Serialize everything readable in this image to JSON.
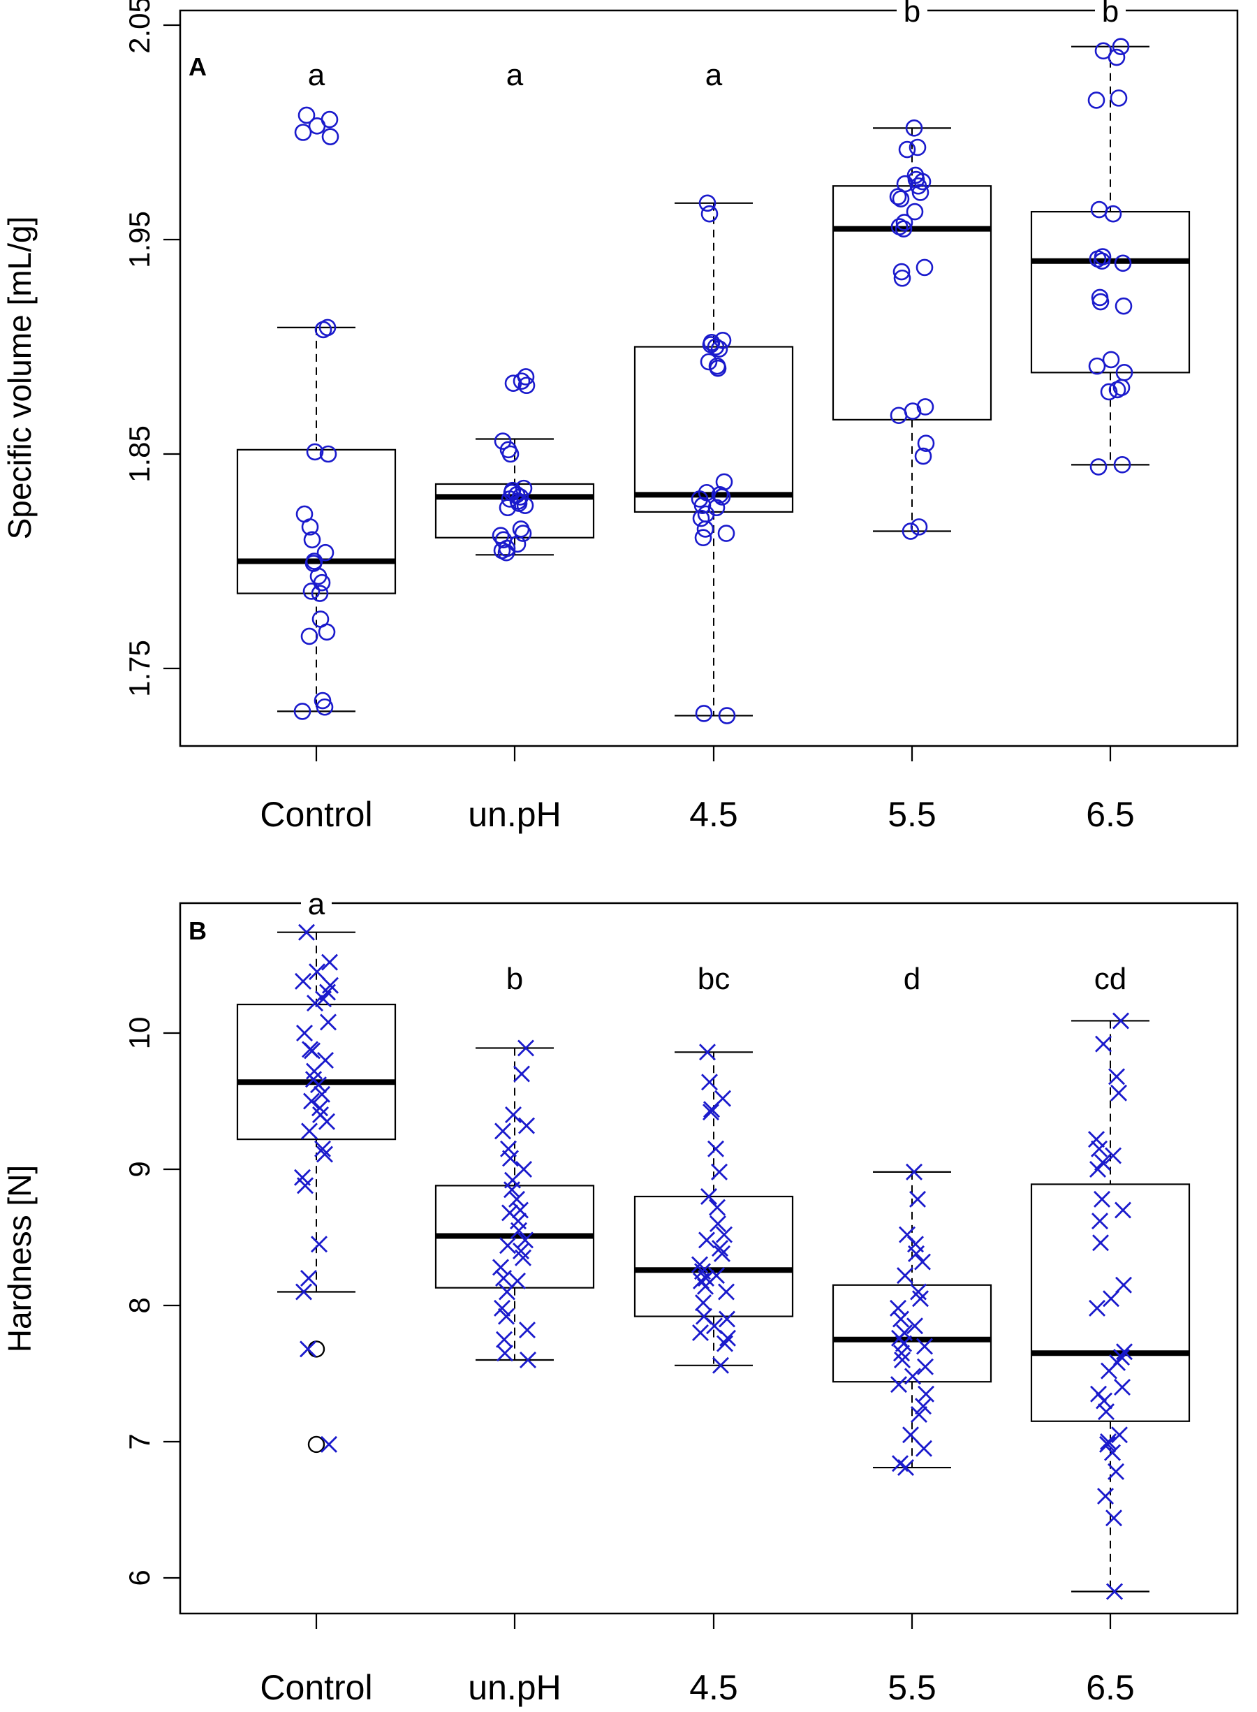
{
  "chart_data": [
    {
      "panel": "A",
      "type": "boxplot",
      "ylabel": "Specific volume [mL/g]",
      "xlabel": "",
      "ylim": [
        1.715,
        2.05
      ],
      "yticks": [
        1.75,
        1.85,
        1.95,
        2.05
      ],
      "ytick_labels": [
        "1.75",
        "1.85",
        "1.95",
        "2.05"
      ],
      "marker": "circle",
      "categories": [
        "Control",
        "un.pH",
        "4.5",
        "5.5",
        "6.5"
      ],
      "letters": [
        "a",
        "a",
        "a",
        "b",
        "b"
      ],
      "boxes": [
        {
          "min": 1.73,
          "q1": 1.785,
          "median": 1.8,
          "q3": 1.852,
          "max": 1.909
        },
        {
          "min": 1.803,
          "q1": 1.811,
          "median": 1.83,
          "q3": 1.836,
          "max": 1.857
        },
        {
          "min": 1.728,
          "q1": 1.823,
          "median": 1.831,
          "q3": 1.9,
          "max": 1.967
        },
        {
          "min": 1.814,
          "q1": 1.866,
          "median": 1.955,
          "q3": 1.975,
          "max": 2.002
        },
        {
          "min": 1.845,
          "q1": 1.888,
          "median": 1.94,
          "q3": 1.963,
          "max": 2.04
        }
      ],
      "points": [
        [
          2.008,
          2.006,
          2.003,
          2.0,
          1.998,
          1.909,
          1.908,
          1.851,
          1.85,
          1.822,
          1.816,
          1.81,
          1.804,
          1.8,
          1.799,
          1.793,
          1.79,
          1.786,
          1.785,
          1.773,
          1.767,
          1.765,
          1.735,
          1.732,
          1.73
        ],
        [
          1.886,
          1.884,
          1.883,
          1.882,
          1.856,
          1.852,
          1.85,
          1.834,
          1.833,
          1.832,
          1.831,
          1.83,
          1.829,
          1.828,
          1.827,
          1.826,
          1.825,
          1.815,
          1.813,
          1.812,
          1.81,
          1.808,
          1.806,
          1.805,
          1.804
        ],
        [
          1.967,
          1.962,
          1.903,
          1.902,
          1.901,
          1.9,
          1.899,
          1.893,
          1.891,
          1.89,
          1.837,
          1.832,
          1.831,
          1.83,
          1.829,
          1.826,
          1.825,
          1.822,
          1.82,
          1.815,
          1.813,
          1.811,
          1.729,
          1.728
        ],
        [
          2.002,
          1.993,
          1.992,
          1.98,
          1.978,
          1.977,
          1.976,
          1.975,
          1.972,
          1.97,
          1.969,
          1.963,
          1.958,
          1.956,
          1.955,
          1.937,
          1.935,
          1.932,
          1.872,
          1.87,
          1.868,
          1.855,
          1.849,
          1.816,
          1.814
        ],
        [
          2.04,
          2.038,
          2.035,
          2.016,
          2.015,
          1.964,
          1.962,
          1.942,
          1.941,
          1.94,
          1.939,
          1.923,
          1.921,
          1.919,
          1.894,
          1.891,
          1.888,
          1.881,
          1.88,
          1.879,
          1.845,
          1.844
        ]
      ]
    },
    {
      "panel": "B",
      "type": "boxplot",
      "ylabel": "Hardness [N]",
      "xlabel": "",
      "ylim": [
        5.7,
        10.95
      ],
      "yticks": [
        6,
        7,
        8,
        9,
        10
      ],
      "ytick_labels": [
        "6",
        "7",
        "8",
        "9",
        "10"
      ],
      "marker": "cross",
      "categories": [
        "Control",
        "un.pH",
        "4.5",
        "5.5",
        "6.5"
      ],
      "letters": [
        "a",
        "b",
        "bc",
        "d",
        "cd"
      ],
      "boxes": [
        {
          "min": 8.1,
          "q1": 9.22,
          "median": 9.64,
          "q3": 10.21,
          "max": 10.74
        },
        {
          "min": 7.6,
          "q1": 8.13,
          "median": 8.51,
          "q3": 8.88,
          "max": 9.89
        },
        {
          "min": 7.56,
          "q1": 7.92,
          "median": 8.26,
          "q3": 8.8,
          "max": 9.86
        },
        {
          "min": 6.81,
          "q1": 7.44,
          "median": 7.75,
          "q3": 8.15,
          "max": 8.98
        },
        {
          "min": 5.9,
          "q1": 7.15,
          "median": 7.65,
          "q3": 8.89,
          "max": 10.09
        }
      ],
      "outliers": [
        [
          7.68,
          6.98
        ],
        [],
        [],
        [],
        []
      ],
      "points": [
        [
          10.74,
          10.52,
          10.45,
          10.38,
          10.35,
          10.3,
          10.25,
          10.22,
          10.08,
          10.0,
          9.88,
          9.87,
          9.8,
          9.72,
          9.66,
          9.62,
          9.55,
          9.5,
          9.45,
          9.4,
          9.35,
          9.28,
          9.15,
          9.11,
          8.94,
          8.88,
          8.45,
          8.2,
          8.1,
          7.68,
          6.98
        ],
        [
          9.89,
          9.7,
          9.4,
          9.32,
          9.28,
          9.15,
          9.08,
          9.0,
          8.92,
          8.85,
          8.78,
          8.7,
          8.68,
          8.62,
          8.55,
          8.48,
          8.44,
          8.4,
          8.35,
          8.28,
          8.2,
          8.18,
          8.1,
          7.98,
          7.92,
          7.82,
          7.75,
          7.65,
          7.6
        ],
        [
          9.86,
          9.64,
          9.52,
          9.44,
          9.42,
          9.15,
          8.98,
          8.8,
          8.72,
          8.6,
          8.52,
          8.48,
          8.42,
          8.38,
          8.3,
          8.25,
          8.22,
          8.2,
          8.18,
          8.14,
          8.1,
          8.02,
          7.92,
          7.9,
          7.85,
          7.8,
          7.76,
          7.72,
          7.56
        ],
        [
          8.98,
          8.78,
          8.52,
          8.45,
          8.38,
          8.32,
          8.22,
          8.1,
          8.05,
          7.98,
          7.9,
          7.85,
          7.8,
          7.76,
          7.72,
          7.7,
          7.65,
          7.6,
          7.55,
          7.48,
          7.42,
          7.35,
          7.26,
          7.2,
          7.05,
          6.95,
          6.84,
          6.81
        ],
        [
          10.09,
          9.92,
          9.68,
          9.56,
          9.22,
          9.15,
          9.1,
          9.05,
          9.0,
          8.78,
          8.7,
          8.62,
          8.46,
          8.15,
          8.05,
          7.98,
          7.66,
          7.62,
          7.58,
          7.52,
          7.4,
          7.35,
          7.3,
          7.22,
          7.05,
          7.0,
          6.98,
          6.92,
          6.78,
          6.6,
          6.44,
          5.9
        ]
      ]
    }
  ]
}
